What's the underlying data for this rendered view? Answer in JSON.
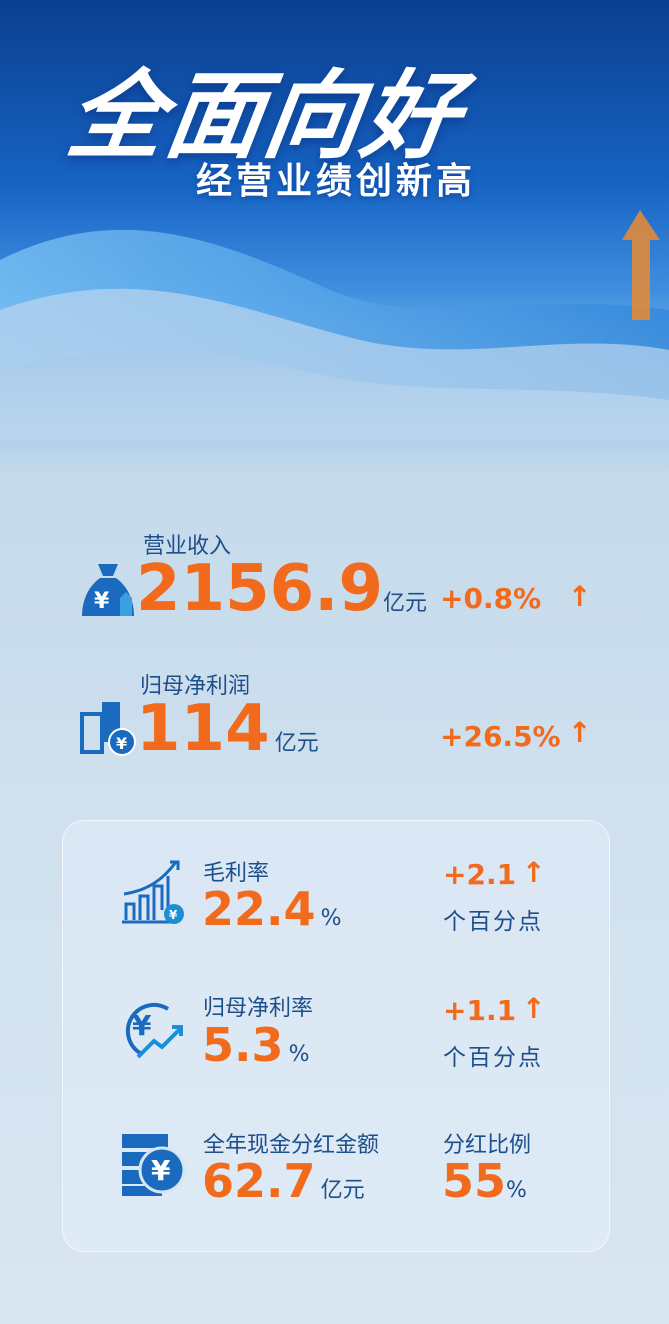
{
  "header": {
    "title": "全面向好",
    "subtitle": "经营业绩创新高"
  },
  "colors": {
    "accent": "#f26a1b",
    "label": "#1d4f8a",
    "icon": "#1a6bbf"
  },
  "metrics": [
    {
      "label": "营业收入",
      "value": "2156.9",
      "unit": "亿元",
      "change": "+0.8%",
      "icon": "money-bag-icon"
    },
    {
      "label": "归母净利润",
      "value": "114",
      "unit": "亿元",
      "change": "+26.5%",
      "icon": "building-yuan-icon"
    }
  ],
  "card": {
    "items": [
      {
        "label": "毛利率",
        "value": "22.4",
        "unit": "%",
        "change": "+2.1",
        "change_unit": "个百分点",
        "icon": "bar-chart-yuan-icon"
      },
      {
        "label": "归母净利率",
        "value": "5.3",
        "unit": "%",
        "change": "+1.1",
        "change_unit": "个百分点",
        "icon": "yuan-growth-icon"
      },
      {
        "label": "全年现金分红金额",
        "value": "62.7",
        "unit": "亿元",
        "ratio_label": "分红比例",
        "ratio_value": "55",
        "ratio_unit": "%",
        "icon": "coin-stack-icon"
      }
    ]
  }
}
